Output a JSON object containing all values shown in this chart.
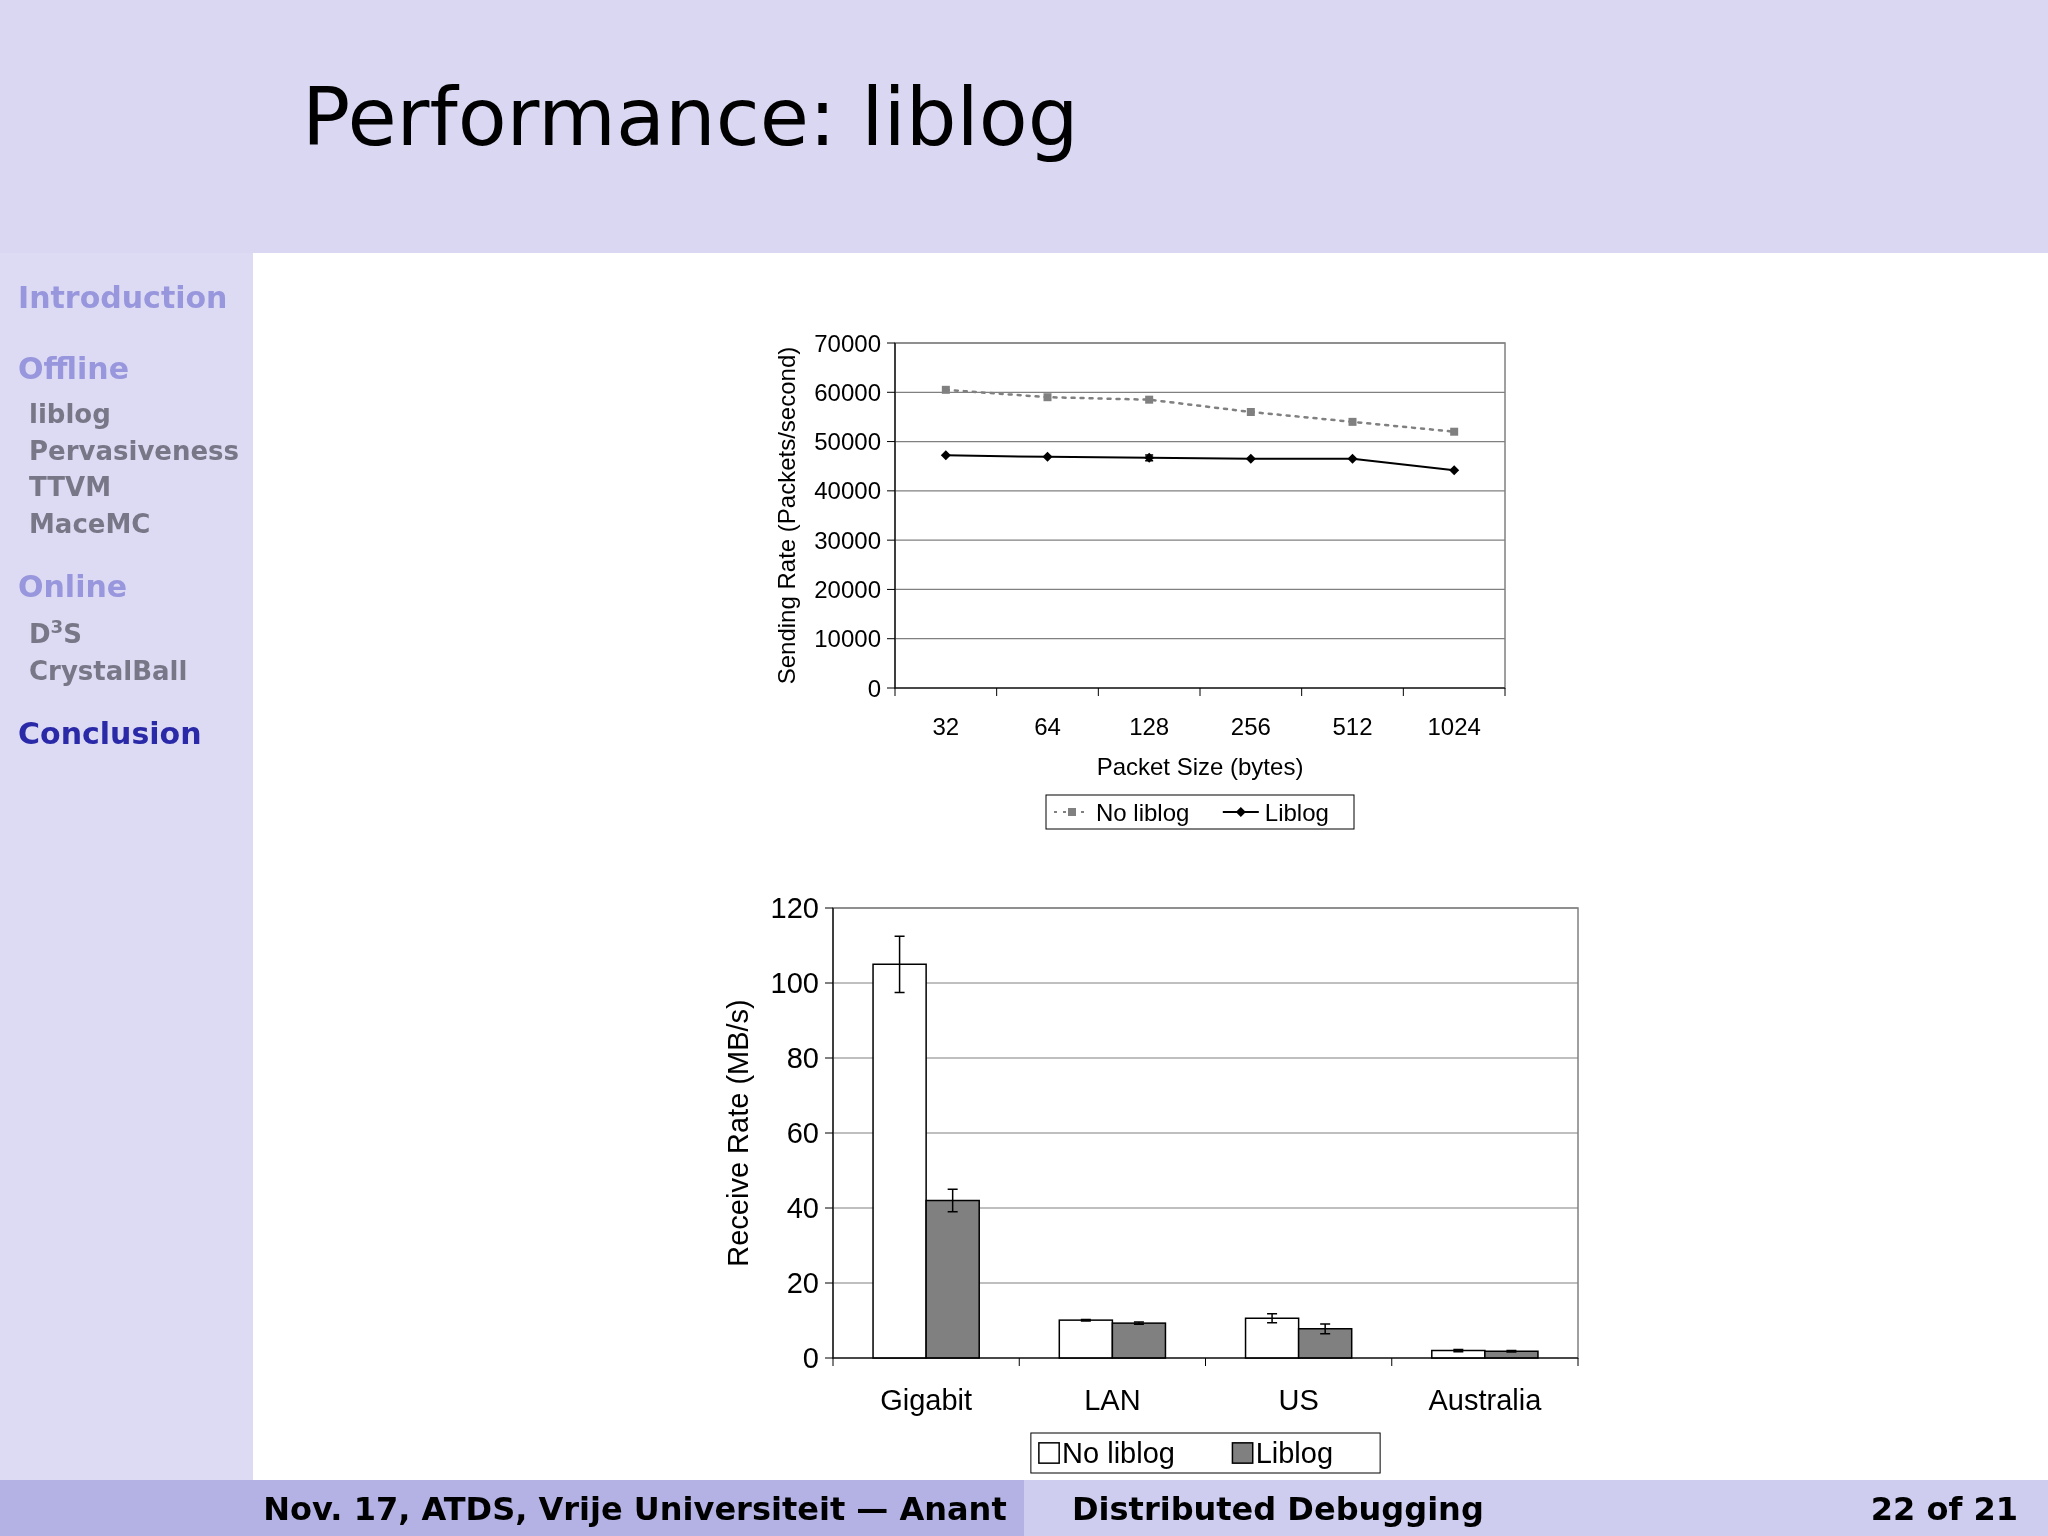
{
  "chart_data": [
    {
      "type": "line",
      "title": "Performance: liblog",
      "xlabel": "Packet Size (bytes)",
      "ylabel": "Sending Rate (Packets/second)",
      "categories": [
        "32",
        "64",
        "128",
        "256",
        "512",
        "1024"
      ],
      "series": [
        {
          "name": "No liblog",
          "color": "#808080",
          "line_style": "dotted",
          "marker": "square",
          "values": [
            60500,
            59000,
            58500,
            56000,
            54000,
            52000
          ]
        },
        {
          "name": "Liblog",
          "color": "#000000",
          "line_style": "solid",
          "marker": "diamond",
          "values": [
            47200,
            46900,
            46700,
            46500,
            46500,
            44200
          ],
          "errors": [
            null,
            null,
            600,
            null,
            null,
            null
          ]
        }
      ],
      "ylim": [
        0,
        70000
      ],
      "yticks": [
        0,
        10000,
        20000,
        30000,
        40000,
        50000,
        60000,
        70000
      ],
      "grid": "y",
      "legend": "bottom",
      "annotations": [
        "Introduction",
        "Offline",
        "liblog",
        "Pervasiveness",
        "TTVM",
        "MaceMC",
        "Online",
        "D$^{3}$S",
        "CrystalBall",
        "Conclusion",
        "Nov. 17, ATDS, Vrije Universiteit — Anant",
        "Distributed Debugging",
        "22 of 21"
      ]
    },
    {
      "type": "bar",
      "ylabel": "Receive Rate (MB/s)",
      "categories": [
        "Gigabit",
        "LAN",
        "US",
        "Australia"
      ],
      "series": [
        {
          "name": "No liblog",
          "color": "#ffffff",
          "values": [
            105,
            10.1,
            10.6,
            2.0
          ],
          "errors": [
            7.5,
            0.2,
            1.2,
            0.3
          ]
        },
        {
          "name": "Liblog",
          "color": "#808080",
          "values": [
            42,
            9.3,
            7.8,
            1.8
          ],
          "errors": [
            3,
            0.3,
            1.3,
            0.2
          ]
        }
      ],
      "ylim": [
        0,
        120
      ],
      "yticks": [
        0,
        20,
        40,
        60,
        80,
        100,
        120
      ],
      "grid": "y",
      "legend": "bottom"
    }
  ]
}
